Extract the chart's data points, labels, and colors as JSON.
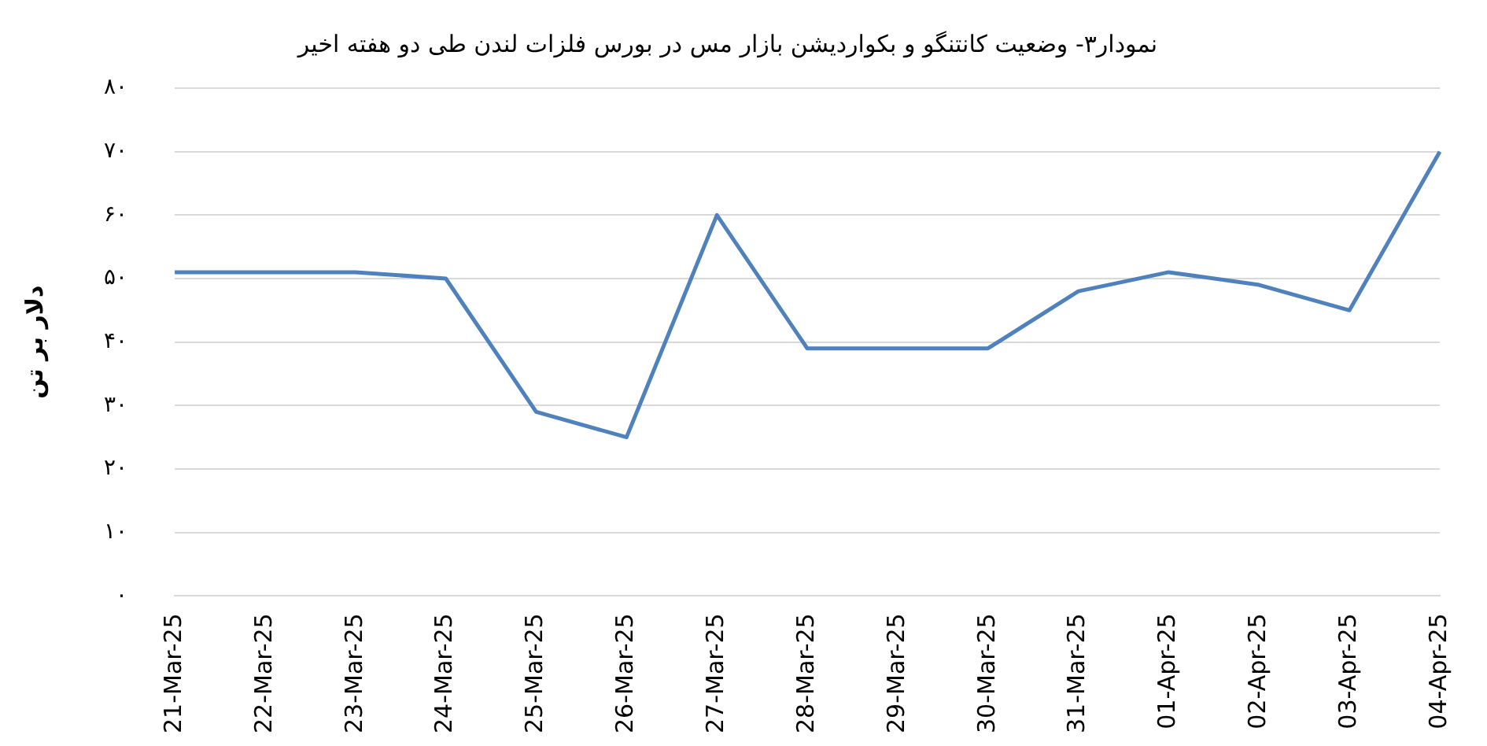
{
  "chart_data": {
    "type": "line",
    "title": "نمودار۳- وضعیت کانتنگو و بکواردیشن بازار مس در بورس فلزات لندن طی دو هفته اخیر",
    "ylabel": "دلار بر تن",
    "categories": [
      "21-Mar-25",
      "22-Mar-25",
      "23-Mar-25",
      "24-Mar-25",
      "25-Mar-25",
      "26-Mar-25",
      "27-Mar-25",
      "28-Mar-25",
      "29-Mar-25",
      "30-Mar-25",
      "31-Mar-25",
      "01-Apr-25",
      "02-Apr-25",
      "03-Apr-25",
      "04-Apr-25"
    ],
    "series": [
      {
        "color": "#4f81bd",
        "values": [
          51,
          51,
          51,
          50,
          29,
          25,
          60,
          39,
          39,
          39,
          48,
          51,
          49,
          45,
          70
        ]
      }
    ],
    "ylim": [
      0,
      80
    ],
    "yticks": [
      {
        "value": 0,
        "label": "۰"
      },
      {
        "value": 10,
        "label": "۱۰"
      },
      {
        "value": 20,
        "label": "۲۰"
      },
      {
        "value": 30,
        "label": "۳۰"
      },
      {
        "value": 40,
        "label": "۴۰"
      },
      {
        "value": 50,
        "label": "۵۰"
      },
      {
        "value": 60,
        "label": "۶۰"
      },
      {
        "value": 70,
        "label": "۷۰"
      },
      {
        "value": 80,
        "label": "۸۰"
      }
    ],
    "grid": "y",
    "legend": false,
    "marker": "none",
    "line_style": "solid"
  }
}
